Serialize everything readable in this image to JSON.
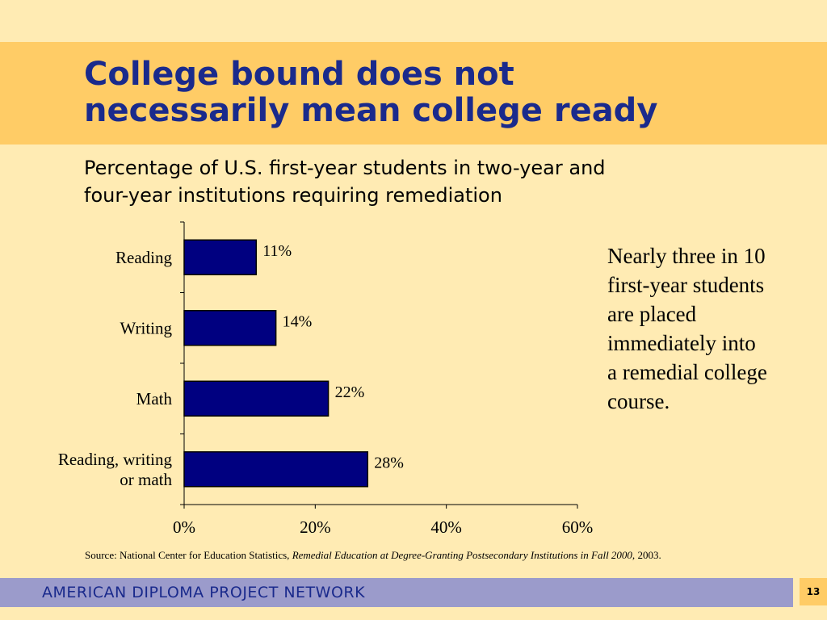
{
  "slide": {
    "title_line1": "College bound does not",
    "title_line2": "necessarily mean college ready",
    "subtitle_line1": "Percentage of U.S. first-year students in two-year and",
    "subtitle_line2": "four-year institutions requiring remediation",
    "callout_lines": [
      "Nearly three in 10",
      "first-year students",
      "are placed",
      "immediately into",
      "a remedial college",
      "course."
    ],
    "source_prefix": "Source: National Center for Education Statistics, ",
    "source_title": "Remedial Education at Degree-Granting Postsecondary Institutions in Fall 2000,",
    "source_suffix": " 2003.",
    "footer": "AMERICAN DIPLOMA PROJECT NETWORK",
    "page_number": "13"
  },
  "colors": {
    "bar": "#000080",
    "title": "#1A2A8C",
    "band": "#FFCC66",
    "background": "#FFEBB3",
    "footer_band": "#9B9BCB"
  },
  "chart_data": {
    "type": "bar",
    "orientation": "horizontal",
    "categories": [
      "Reading",
      "Writing",
      "Math",
      "Reading, writing or math"
    ],
    "category_lines": [
      [
        "Reading"
      ],
      [
        "Writing"
      ],
      [
        "Math"
      ],
      [
        "Reading, writing",
        "or math"
      ]
    ],
    "values": [
      11,
      14,
      22,
      28
    ],
    "data_labels": [
      "11%",
      "14%",
      "22%",
      "28%"
    ],
    "xlim": [
      0,
      60
    ],
    "x_ticks": [
      0,
      20,
      40,
      60
    ],
    "x_tick_labels": [
      "0%",
      "20%",
      "40%",
      "60%"
    ],
    "grid": false,
    "legend": "none"
  }
}
